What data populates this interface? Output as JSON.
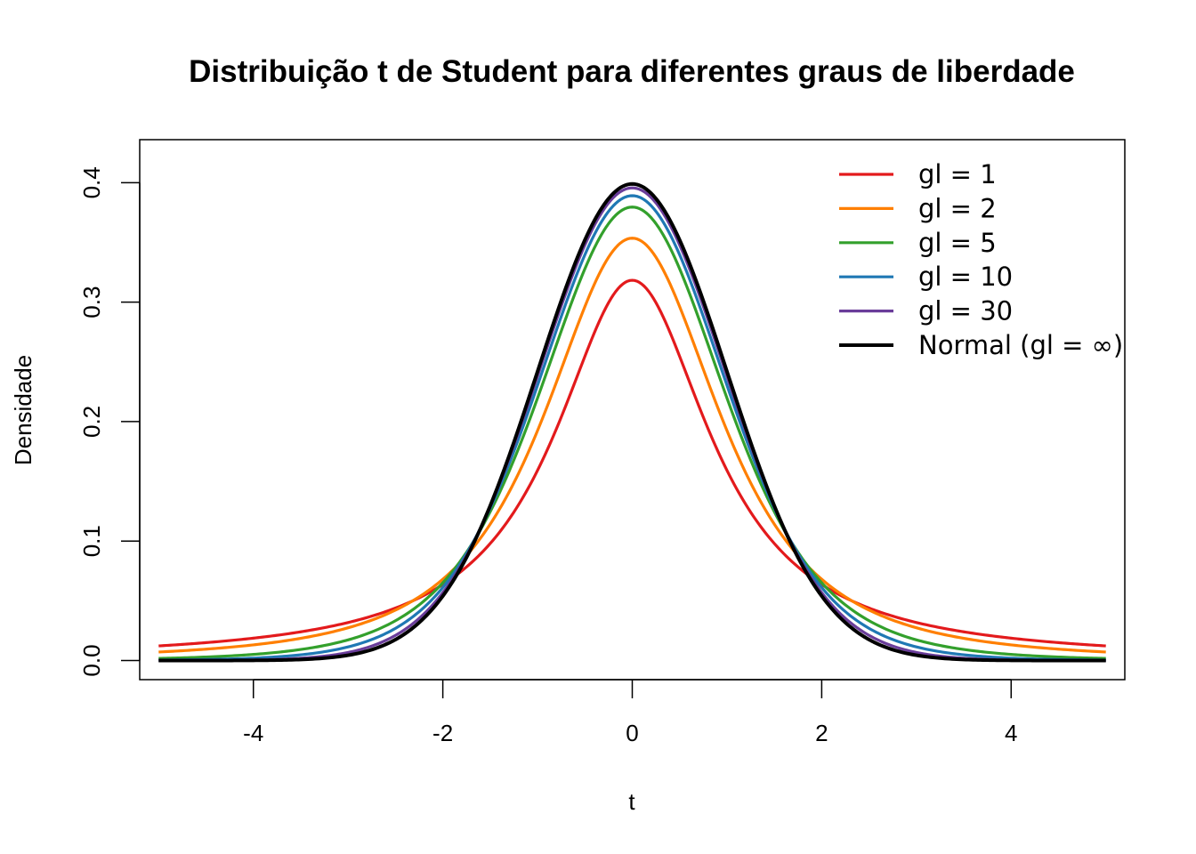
{
  "chart_data": {
    "type": "line",
    "title": "Distribuição t de Student para diferentes graus de liberdade",
    "xlabel": "t",
    "ylabel": "Densidade",
    "xlim": [
      -5.2,
      5.2
    ],
    "ylim": [
      -0.016,
      0.436
    ],
    "x_ticks": [
      -4,
      -2,
      0,
      2,
      4
    ],
    "x_tick_labels": [
      "-4",
      "-2",
      "0",
      "2",
      "4"
    ],
    "y_ticks": [
      0.0,
      0.1,
      0.2,
      0.3,
      0.4
    ],
    "y_tick_labels": [
      "0.0",
      "0.1",
      "0.2",
      "0.3",
      "0.4"
    ],
    "x_domain": [
      -5,
      5
    ],
    "grid": false,
    "legend_position": "top-right",
    "series": [
      {
        "name": "gl = 1",
        "df": 1,
        "color": "#e31a1c"
      },
      {
        "name": "gl = 2",
        "df": 2,
        "color": "#ff7f00"
      },
      {
        "name": "gl = 5",
        "df": 5,
        "color": "#33a02c"
      },
      {
        "name": "gl = 10",
        "df": 10,
        "color": "#1f78b4"
      },
      {
        "name": "gl = 30",
        "df": 30,
        "color": "#6a3d9a"
      },
      {
        "name": "Normal (gl = ∞)",
        "df": null,
        "color": "#000000"
      }
    ]
  }
}
